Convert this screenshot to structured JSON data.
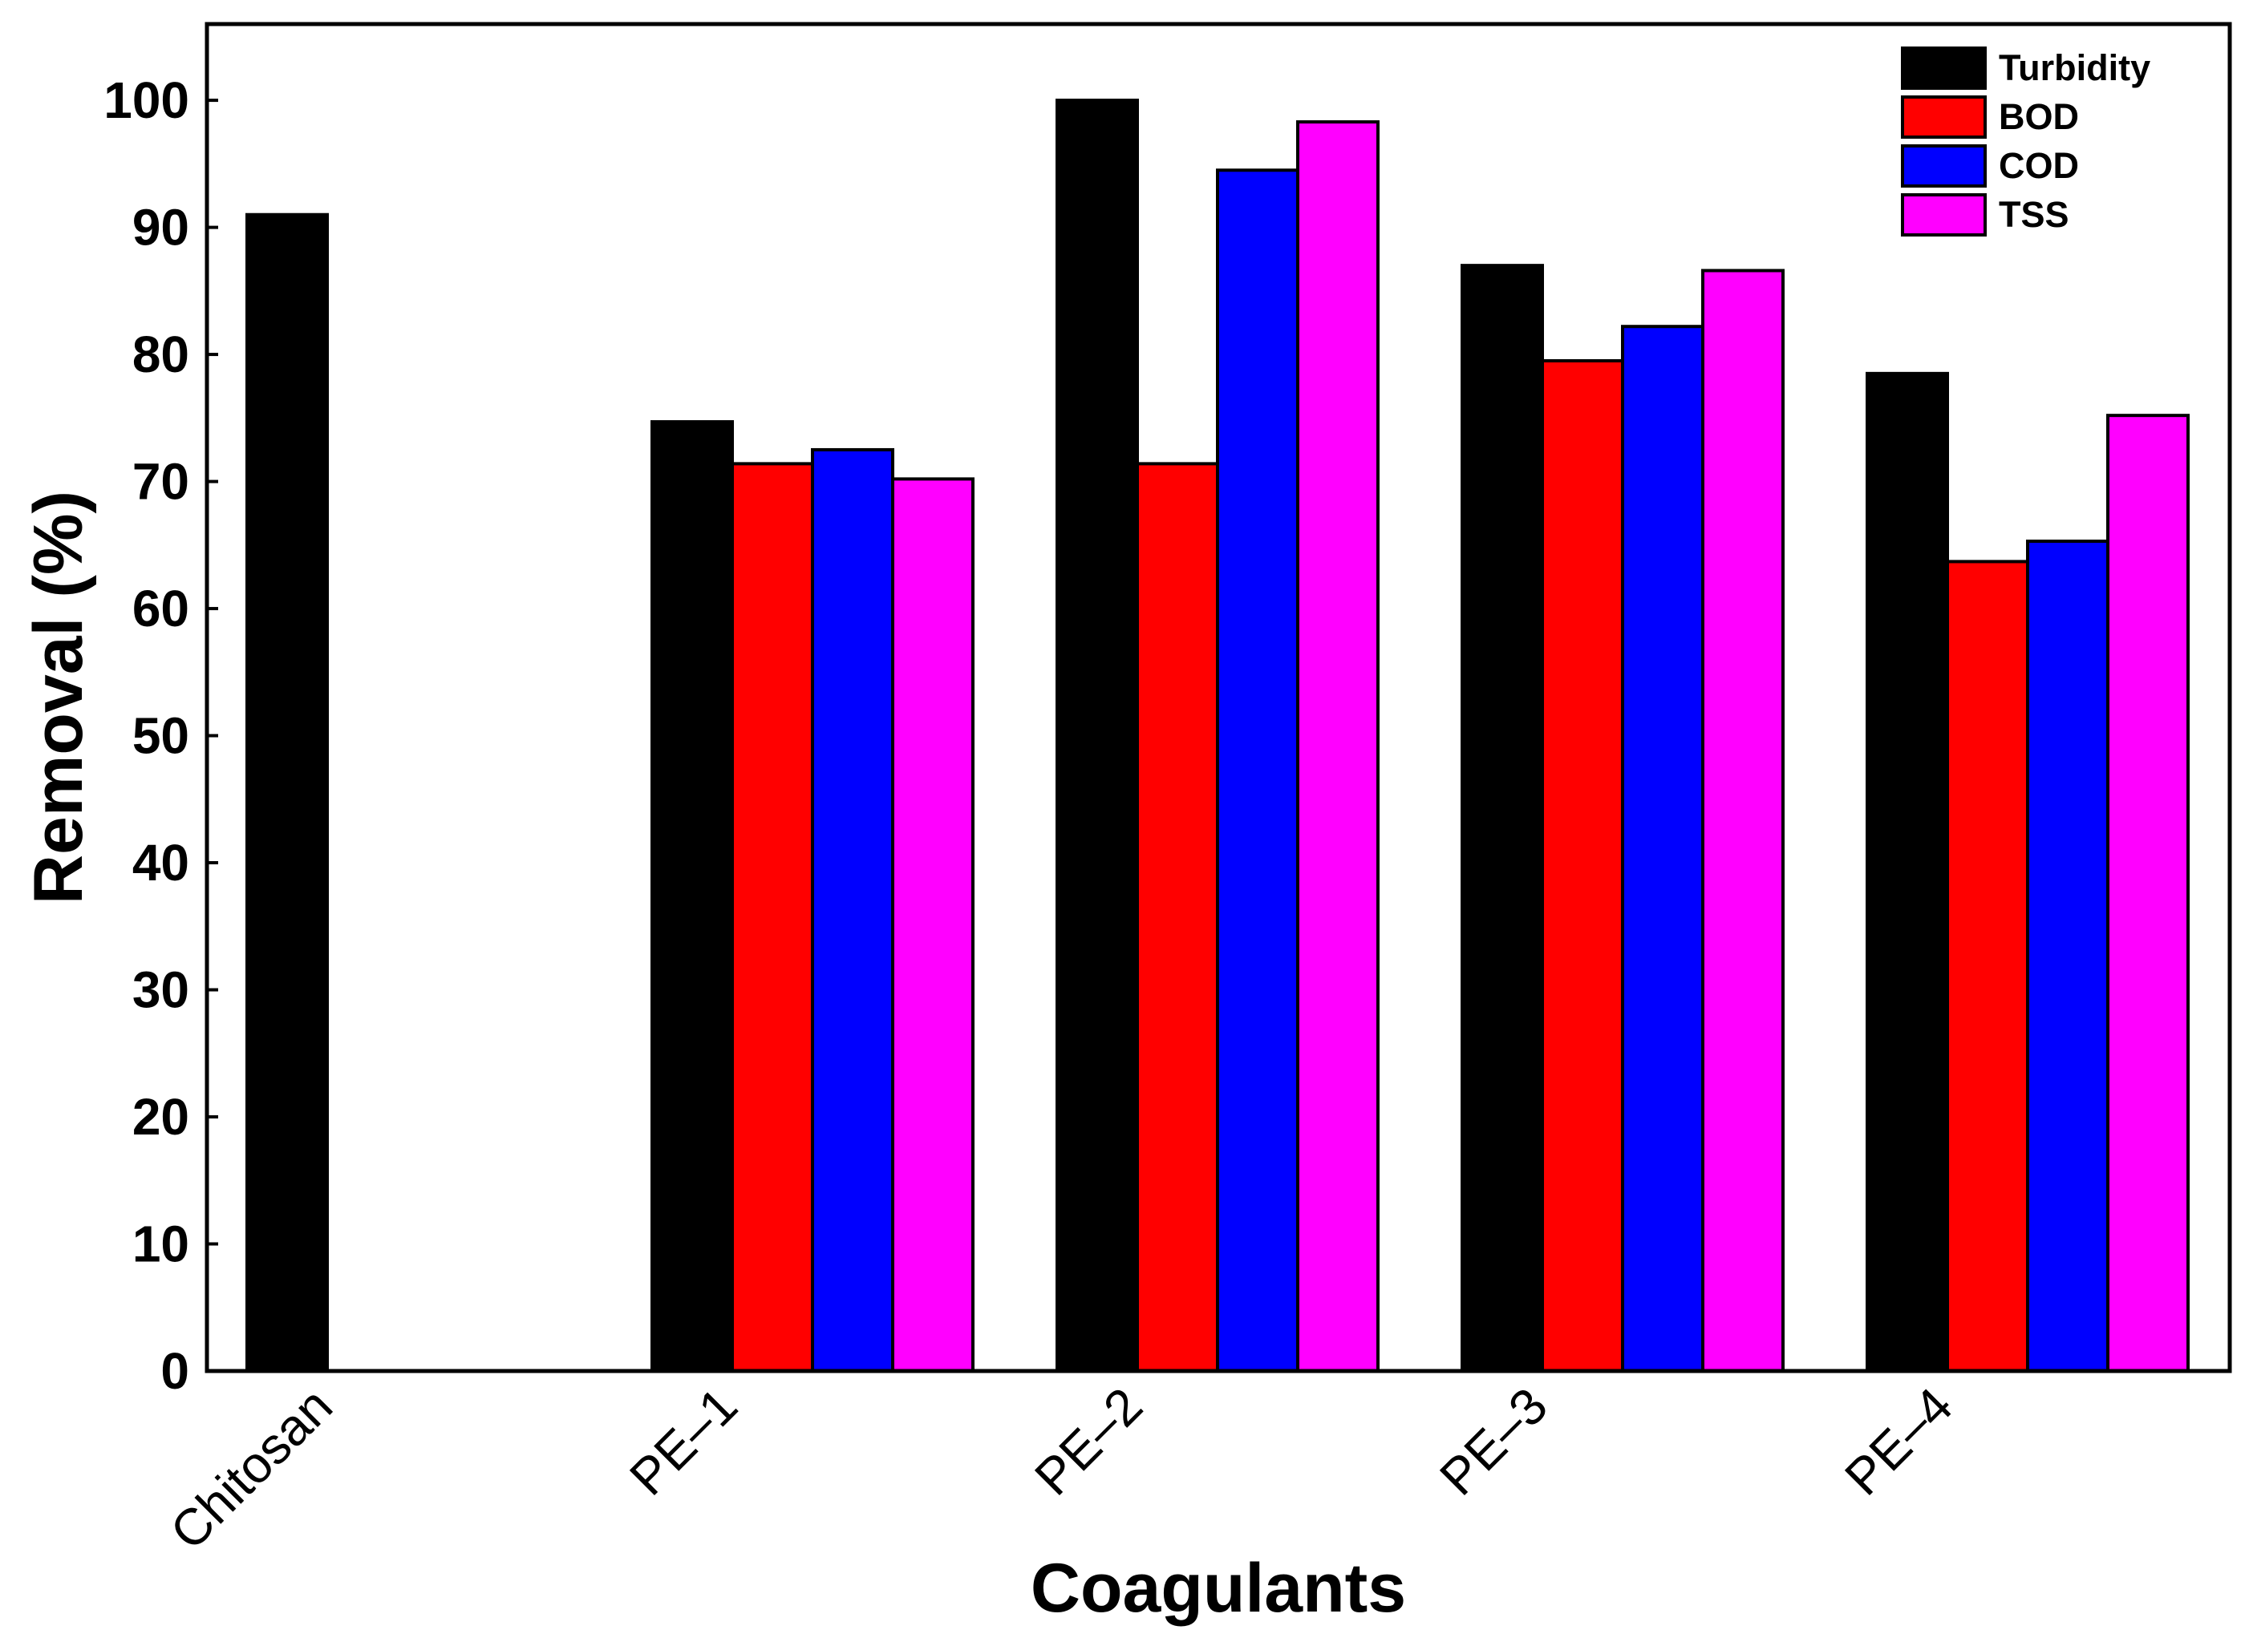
{
  "chart_data": {
    "type": "bar",
    "title": "",
    "xlabel": "Coagulants",
    "ylabel": "Removal (%)",
    "ylim": [
      0,
      106
    ],
    "yticks": [
      0,
      10,
      20,
      30,
      40,
      50,
      60,
      70,
      80,
      90,
      100
    ],
    "grid": false,
    "legend_position": "top-right",
    "categories": [
      "Chitosan",
      "PE–1",
      "PE–2",
      "PE–3",
      "PE–4"
    ],
    "series": [
      {
        "name": "Turbidity",
        "color": "#000000",
        "values": [
          91,
          74.7,
          100,
          87,
          78.5
        ]
      },
      {
        "name": "BOD",
        "color": "#ff0000",
        "values": [
          0,
          71.4,
          71.4,
          79.5,
          63.7
        ]
      },
      {
        "name": "COD",
        "color": "#0000ff",
        "values": [
          0,
          72.5,
          94.5,
          82.2,
          65.3
        ]
      },
      {
        "name": "TSS",
        "color": "#ff00ff",
        "values": [
          0,
          70.2,
          98.3,
          86.6,
          75.2
        ]
      }
    ]
  }
}
